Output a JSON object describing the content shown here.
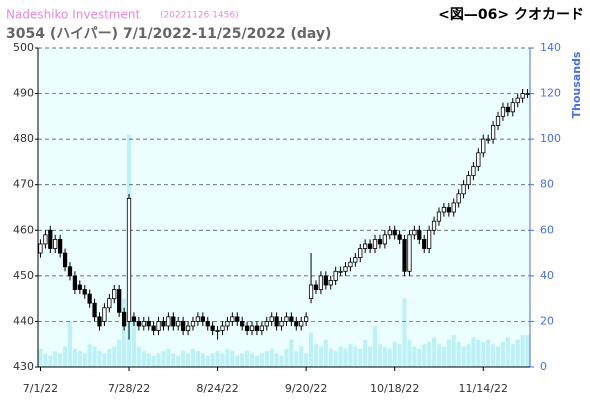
{
  "chart_data": {
    "type": "candlestick",
    "watermark": "Nadeshiko Investment",
    "timestamp": "(20221126 1456)",
    "title": "3054 (ハイパー) 7/1/2022-11/25/2022 (day)",
    "figure_label": "<図—06> クオカード",
    "y2label": "Thousands",
    "categories": [
      "7/1/22",
      null,
      null,
      null,
      null,
      null,
      null,
      null,
      null,
      null,
      null,
      null,
      null,
      null,
      null,
      null,
      null,
      null,
      "7/28/22",
      null,
      null,
      null,
      null,
      null,
      null,
      null,
      null,
      null,
      null,
      null,
      null,
      null,
      null,
      null,
      null,
      null,
      "8/24/22",
      null,
      null,
      null,
      null,
      null,
      null,
      null,
      null,
      null,
      null,
      null,
      null,
      null,
      null,
      null,
      null,
      null,
      "9/20/22",
      null,
      null,
      null,
      null,
      null,
      null,
      null,
      null,
      null,
      null,
      null,
      null,
      null,
      null,
      null,
      null,
      null,
      "10/18/22",
      null,
      null,
      null,
      null,
      null,
      null,
      null,
      null,
      null,
      null,
      null,
      null,
      null,
      null,
      null,
      null,
      null,
      "11/14/22",
      null,
      null,
      null,
      null,
      null,
      null,
      null,
      null,
      null
    ],
    "open": [
      455,
      457,
      460,
      456,
      458,
      455,
      452,
      450,
      448,
      447,
      446,
      444,
      441,
      440,
      443,
      445,
      447,
      442,
      440,
      441,
      440,
      439,
      440,
      439,
      438,
      440,
      439,
      441,
      439,
      440,
      438,
      439,
      440,
      441,
      440,
      439,
      438,
      438,
      439,
      440,
      441,
      440,
      439,
      438,
      439,
      438,
      439,
      440,
      441,
      439,
      440,
      441,
      440,
      439,
      440,
      445,
      448,
      447,
      450,
      448,
      449,
      451,
      451,
      452,
      453,
      454,
      456,
      457,
      456,
      458,
      457,
      459,
      460,
      459,
      458,
      451,
      459,
      460,
      458,
      456,
      460,
      462,
      464,
      465,
      464,
      466,
      468,
      470,
      472,
      474,
      477,
      480,
      480,
      483,
      485,
      487,
      486,
      488,
      489,
      490
    ],
    "high": [
      458,
      460,
      461,
      459,
      459,
      456,
      453,
      451,
      449,
      448,
      447,
      445,
      442,
      444,
      446,
      448,
      448,
      443,
      468,
      442,
      441,
      441,
      441,
      440,
      441,
      441,
      442,
      442,
      441,
      441,
      440,
      441,
      442,
      442,
      441,
      440,
      439,
      440,
      441,
      442,
      442,
      441,
      440,
      440,
      440,
      440,
      441,
      442,
      442,
      441,
      442,
      442,
      441,
      441,
      442,
      455,
      449,
      451,
      451,
      450,
      452,
      452,
      453,
      454,
      455,
      457,
      458,
      458,
      459,
      459,
      460,
      461,
      461,
      460,
      459,
      460,
      461,
      461,
      459,
      461,
      463,
      465,
      466,
      466,
      467,
      469,
      471,
      473,
      475,
      478,
      481,
      481,
      484,
      486,
      488,
      488,
      489,
      490,
      491,
      491
    ],
    "low": [
      454,
      456,
      455,
      455,
      454,
      451,
      449,
      446,
      446,
      445,
      443,
      440,
      438,
      439,
      442,
      444,
      441,
      438,
      436,
      439,
      438,
      438,
      438,
      437,
      437,
      438,
      438,
      438,
      438,
      437,
      437,
      438,
      439,
      439,
      438,
      437,
      436,
      437,
      438,
      439,
      439,
      438,
      437,
      437,
      437,
      437,
      438,
      439,
      438,
      438,
      439,
      439,
      438,
      438,
      439,
      444,
      446,
      446,
      447,
      447,
      448,
      450,
      450,
      451,
      452,
      453,
      455,
      455,
      455,
      456,
      456,
      458,
      458,
      457,
      450,
      450,
      458,
      457,
      455,
      455,
      459,
      461,
      463,
      463,
      463,
      465,
      467,
      469,
      471,
      473,
      476,
      479,
      479,
      482,
      484,
      485,
      485,
      487,
      488,
      489
    ],
    "close": [
      457,
      459,
      456,
      458,
      455,
      452,
      450,
      447,
      447,
      446,
      444,
      441,
      439,
      443,
      445,
      447,
      442,
      439,
      467,
      440,
      439,
      440,
      439,
      438,
      440,
      439,
      441,
      439,
      440,
      438,
      439,
      440,
      441,
      440,
      439,
      438,
      438,
      439,
      440,
      441,
      440,
      439,
      438,
      439,
      438,
      439,
      440,
      441,
      439,
      440,
      441,
      440,
      439,
      440,
      441,
      448,
      447,
      450,
      448,
      449,
      451,
      451,
      452,
      453,
      454,
      456,
      457,
      456,
      458,
      457,
      459,
      460,
      459,
      458,
      451,
      459,
      460,
      458,
      456,
      460,
      462,
      464,
      465,
      464,
      466,
      468,
      470,
      472,
      474,
      477,
      480,
      480,
      483,
      485,
      487,
      486,
      488,
      489,
      490,
      490
    ],
    "volume": [
      8,
      6,
      5,
      7,
      6,
      9,
      20,
      8,
      7,
      6,
      10,
      9,
      7,
      6,
      8,
      9,
      12,
      30,
      102,
      22,
      9,
      7,
      6,
      5,
      6,
      7,
      8,
      6,
      5,
      7,
      6,
      8,
      7,
      6,
      5,
      6,
      7,
      6,
      8,
      7,
      5,
      6,
      7,
      6,
      5,
      6,
      7,
      8,
      6,
      5,
      8,
      12,
      7,
      9,
      6,
      15,
      10,
      9,
      12,
      8,
      7,
      9,
      8,
      10,
      9,
      8,
      12,
      9,
      18,
      10,
      9,
      8,
      11,
      10,
      30,
      12,
      9,
      8,
      10,
      11,
      13,
      10,
      9,
      12,
      14,
      11,
      9,
      10,
      13,
      12,
      11,
      12,
      10,
      9,
      11,
      13,
      10,
      12,
      14,
      14
    ],
    "ylim": [
      430,
      500
    ],
    "yticks": [
      430,
      440,
      450,
      460,
      470,
      480,
      490,
      500
    ],
    "y2lim": [
      0,
      140
    ],
    "y2ticks": [
      0,
      20,
      40,
      60,
      80,
      100,
      120,
      140
    ],
    "grid": true,
    "up_color": "#ffffff",
    "down_color": "#000000",
    "volume_color": "#bdf1f5",
    "plot_background": "#ecfeff"
  }
}
